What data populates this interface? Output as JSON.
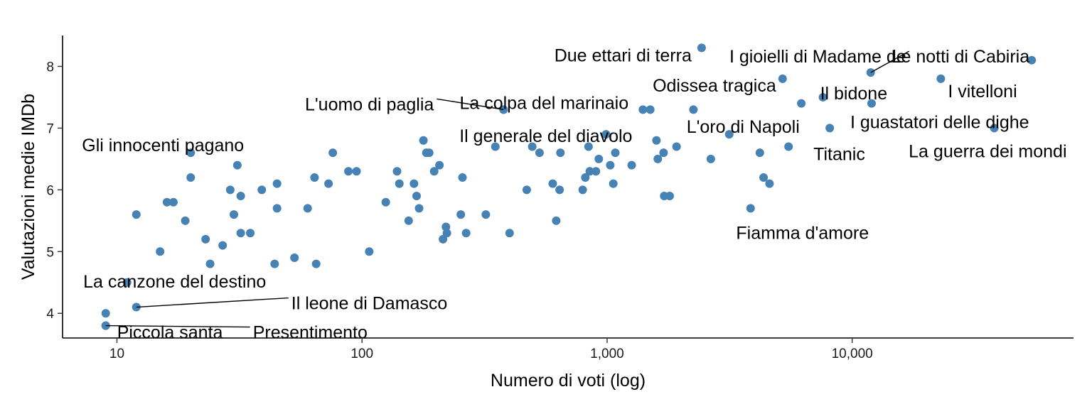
{
  "chart_data": {
    "type": "scatter",
    "title": "",
    "xlabel": "Numero di voti (log)",
    "ylabel": "Valutazioni medie IMDb",
    "x_scale": "log10",
    "xlim": [
      6,
      80000
    ],
    "ylim": [
      3.6,
      8.5
    ],
    "x_ticks": [
      10,
      100,
      1000,
      10000
    ],
    "x_tick_labels": [
      "10",
      "100",
      "1,000",
      "10,000"
    ],
    "y_ticks": [
      4,
      5,
      6,
      7,
      8
    ],
    "y_tick_labels": [
      "4",
      "5",
      "6",
      "7",
      "8"
    ],
    "grid": false,
    "legend": "none",
    "point_color": "#4682B4",
    "points": [
      {
        "x": 9,
        "y": 3.8,
        "label": "Piccola santa"
      },
      {
        "x": 9,
        "y": 4.0,
        "label": ""
      },
      {
        "x": 11,
        "y": 4.5,
        "label": "La canzone del destino"
      },
      {
        "x": 12,
        "y": 4.1,
        "label": "Il leone di Damasco"
      },
      {
        "x": 12,
        "y": 5.6,
        "label": ""
      },
      {
        "x": 15,
        "y": 5.0,
        "label": ""
      },
      {
        "x": 16,
        "y": 5.8,
        "label": ""
      },
      {
        "x": 17,
        "y": 5.8,
        "label": ""
      },
      {
        "x": 19,
        "y": 5.5,
        "label": ""
      },
      {
        "x": 20,
        "y": 6.6,
        "label": "Gli innocenti pagano"
      },
      {
        "x": 20,
        "y": 6.2,
        "label": ""
      },
      {
        "x": 23,
        "y": 5.2,
        "label": ""
      },
      {
        "x": 24,
        "y": 4.8,
        "label": ""
      },
      {
        "x": 27,
        "y": 5.1,
        "label": ""
      },
      {
        "x": 29,
        "y": 6.0,
        "label": ""
      },
      {
        "x": 30,
        "y": 5.6,
        "label": ""
      },
      {
        "x": 31,
        "y": 6.4,
        "label": ""
      },
      {
        "x": 32,
        "y": 5.9,
        "label": ""
      },
      {
        "x": 32,
        "y": 5.3,
        "label": ""
      },
      {
        "x": 35,
        "y": 5.3,
        "label": ""
      },
      {
        "x": 9,
        "y": 3.8,
        "label": "Presentimento"
      },
      {
        "x": 39,
        "y": 6.0,
        "label": ""
      },
      {
        "x": 44,
        "y": 4.8,
        "label": ""
      },
      {
        "x": 45,
        "y": 6.1,
        "label": ""
      },
      {
        "x": 45,
        "y": 5.7,
        "label": ""
      },
      {
        "x": 53,
        "y": 4.9,
        "label": ""
      },
      {
        "x": 60,
        "y": 5.7,
        "label": ""
      },
      {
        "x": 64,
        "y": 6.2,
        "label": ""
      },
      {
        "x": 65,
        "y": 4.8,
        "label": ""
      },
      {
        "x": 73,
        "y": 6.1,
        "label": ""
      },
      {
        "x": 76,
        "y": 6.6,
        "label": ""
      },
      {
        "x": 88,
        "y": 6.3,
        "label": ""
      },
      {
        "x": 95,
        "y": 6.3,
        "label": ""
      },
      {
        "x": 107,
        "y": 5.0,
        "label": ""
      },
      {
        "x": 125,
        "y": 5.8,
        "label": ""
      },
      {
        "x": 139,
        "y": 6.3,
        "label": ""
      },
      {
        "x": 142,
        "y": 6.1,
        "label": ""
      },
      {
        "x": 155,
        "y": 5.5,
        "label": ""
      },
      {
        "x": 163,
        "y": 6.1,
        "label": ""
      },
      {
        "x": 167,
        "y": 5.9,
        "label": ""
      },
      {
        "x": 171,
        "y": 5.7,
        "label": ""
      },
      {
        "x": 178,
        "y": 6.8,
        "label": ""
      },
      {
        "x": 183,
        "y": 6.6,
        "label": ""
      },
      {
        "x": 188,
        "y": 6.6,
        "label": ""
      },
      {
        "x": 197,
        "y": 6.3,
        "label": ""
      },
      {
        "x": 207,
        "y": 6.4,
        "label": ""
      },
      {
        "x": 214,
        "y": 5.2,
        "label": ""
      },
      {
        "x": 220,
        "y": 5.4,
        "label": ""
      },
      {
        "x": 222,
        "y": 5.3,
        "label": ""
      },
      {
        "x": 253,
        "y": 5.6,
        "label": ""
      },
      {
        "x": 257,
        "y": 6.2,
        "label": ""
      },
      {
        "x": 266,
        "y": 5.3,
        "label": ""
      },
      {
        "x": 320,
        "y": 5.6,
        "label": ""
      },
      {
        "x": 350,
        "y": 6.7,
        "label": ""
      },
      {
        "x": 378,
        "y": 7.3,
        "label": "L'uomo di paglia"
      },
      {
        "x": 378,
        "y": 7.3,
        "label": "La colpa del marinaio"
      },
      {
        "x": 400,
        "y": 5.3,
        "label": ""
      },
      {
        "x": 470,
        "y": 6.0,
        "label": ""
      },
      {
        "x": 495,
        "y": 6.7,
        "label": ""
      },
      {
        "x": 530,
        "y": 6.6,
        "label": ""
      },
      {
        "x": 600,
        "y": 6.1,
        "label": ""
      },
      {
        "x": 620,
        "y": 5.5,
        "label": ""
      },
      {
        "x": 640,
        "y": 6.0,
        "label": ""
      },
      {
        "x": 645,
        "y": 6.6,
        "label": ""
      },
      {
        "x": 795,
        "y": 6.0,
        "label": ""
      },
      {
        "x": 815,
        "y": 6.2,
        "label": ""
      },
      {
        "x": 840,
        "y": 6.7,
        "label": ""
      },
      {
        "x": 850,
        "y": 6.3,
        "label": ""
      },
      {
        "x": 900,
        "y": 6.3,
        "label": ""
      },
      {
        "x": 925,
        "y": 6.5,
        "label": ""
      },
      {
        "x": 990,
        "y": 6.9,
        "label": "Il generale del diavolo"
      },
      {
        "x": 1030,
        "y": 6.4,
        "label": ""
      },
      {
        "x": 1060,
        "y": 6.1,
        "label": ""
      },
      {
        "x": 1080,
        "y": 6.6,
        "label": ""
      },
      {
        "x": 1260,
        "y": 6.4,
        "label": ""
      },
      {
        "x": 1400,
        "y": 7.3,
        "label": ""
      },
      {
        "x": 1500,
        "y": 7.3,
        "label": ""
      },
      {
        "x": 1590,
        "y": 6.8,
        "label": ""
      },
      {
        "x": 1610,
        "y": 6.5,
        "label": ""
      },
      {
        "x": 1700,
        "y": 6.6,
        "label": ""
      },
      {
        "x": 1710,
        "y": 5.9,
        "label": ""
      },
      {
        "x": 1800,
        "y": 5.9,
        "label": ""
      },
      {
        "x": 1920,
        "y": 6.7,
        "label": ""
      },
      {
        "x": 2250,
        "y": 7.3,
        "label": ""
      },
      {
        "x": 2430,
        "y": 8.3,
        "label": "Due ettari di terra"
      },
      {
        "x": 2650,
        "y": 6.5,
        "label": ""
      },
      {
        "x": 3150,
        "y": 6.9,
        "label": "L'oro di Napoli"
      },
      {
        "x": 3850,
        "y": 5.7,
        "label": "Fiamma d'amore"
      },
      {
        "x": 4200,
        "y": 6.6,
        "label": ""
      },
      {
        "x": 4350,
        "y": 6.2,
        "label": ""
      },
      {
        "x": 4600,
        "y": 6.1,
        "label": ""
      },
      {
        "x": 5200,
        "y": 7.8,
        "label": "Odissea tragica"
      },
      {
        "x": 5500,
        "y": 6.7,
        "label": ""
      },
      {
        "x": 6200,
        "y": 7.4,
        "label": ""
      },
      {
        "x": 7600,
        "y": 7.5,
        "label": "Il bidone"
      },
      {
        "x": 8100,
        "y": 7.0,
        "label": "Titanic"
      },
      {
        "x": 11900,
        "y": 7.9,
        "label": "I gioielli di Madame de"
      },
      {
        "x": 12000,
        "y": 7.4,
        "label": "I guastatori delle dighe"
      },
      {
        "x": 23000,
        "y": 7.8,
        "label": "I vitelloni"
      },
      {
        "x": 38000,
        "y": 7.0,
        "label": "La guerra dei mondi"
      },
      {
        "x": 54000,
        "y": 8.1,
        "label": "Le notti di Cabiria"
      }
    ],
    "annotations": [
      {
        "text": "Due ettari di terra",
        "x": 2430,
        "y": 8.3,
        "anchor": "end",
        "dx": -14,
        "dy": 10,
        "leader": false
      },
      {
        "text": "I gioielli di Madame de",
        "x": 11900,
        "y": 7.9,
        "anchor": "end",
        "dx": 50,
        "dy": -23,
        "leader": true
      },
      {
        "text": "Le notti di Cabiria",
        "x": 54000,
        "y": 8.1,
        "anchor": "end",
        "dx": -3,
        "dy": -6,
        "leader": false
      },
      {
        "text": "Odissea tragica",
        "x": 5200,
        "y": 7.8,
        "anchor": "end",
        "dx": -9,
        "dy": 9,
        "leader": false
      },
      {
        "text": "Il bidone",
        "x": 7600,
        "y": 7.5,
        "anchor": "start",
        "dx": -4,
        "dy": -6,
        "leader": false
      },
      {
        "text": "I vitelloni",
        "x": 23000,
        "y": 7.8,
        "anchor": "start",
        "dx": 10,
        "dy": 17,
        "leader": false
      },
      {
        "text": "L'uomo di paglia",
        "x": 378,
        "y": 7.3,
        "anchor": "end",
        "dx": -98,
        "dy": -8,
        "leader": true
      },
      {
        "text": "La colpa del marinaio",
        "x": 378,
        "y": 7.3,
        "anchor": "middle",
        "dx": 57,
        "dy": -10,
        "leader": false
      },
      {
        "text": "I guastatori delle dighe",
        "x": 12000,
        "y": 7.4,
        "anchor": "start",
        "dx": -30,
        "dy": 26,
        "leader": false
      },
      {
        "text": "L'oro di Napoli",
        "x": 3150,
        "y": 6.9,
        "anchor": "start",
        "dx": -60,
        "dy": -11,
        "leader": false
      },
      {
        "text": "Il generale del diavolo",
        "x": 990,
        "y": 6.9,
        "anchor": "end",
        "dx": 37,
        "dy": 2,
        "leader": false
      },
      {
        "text": "Gli innocenti pagano",
        "x": 20,
        "y": 6.6,
        "anchor": "middle",
        "dx": -39,
        "dy": -11,
        "leader": false
      },
      {
        "text": "Titanic",
        "x": 8100,
        "y": 7.0,
        "anchor": "start",
        "dx": -23,
        "dy": 36,
        "leader": false
      },
      {
        "text": "La guerra dei mondi",
        "x": 38000,
        "y": 7.0,
        "anchor": "end",
        "dx": 102,
        "dy": 32,
        "leader": false
      },
      {
        "text": "Fiamma d'amore",
        "x": 3850,
        "y": 5.7,
        "anchor": "middle",
        "dx": 73,
        "dy": 34,
        "leader": false
      },
      {
        "text": "La canzone del destino",
        "x": 11,
        "y": 4.5,
        "anchor": "middle",
        "dx": 67,
        "dy": -2,
        "leader": false
      },
      {
        "text": "Il leone di Damasco",
        "x": 12,
        "y": 4.1,
        "anchor": "start",
        "dx": 218,
        "dy": -6,
        "leader": true
      },
      {
        "text": "Piccola santa",
        "x": 9,
        "y": 3.8,
        "anchor": "start",
        "dx": 16,
        "dy": 9,
        "leader": false
      },
      {
        "text": "Presentimento",
        "x": 9,
        "y": 3.8,
        "anchor": "start",
        "dx": 207,
        "dy": 9,
        "leader": true
      }
    ]
  }
}
